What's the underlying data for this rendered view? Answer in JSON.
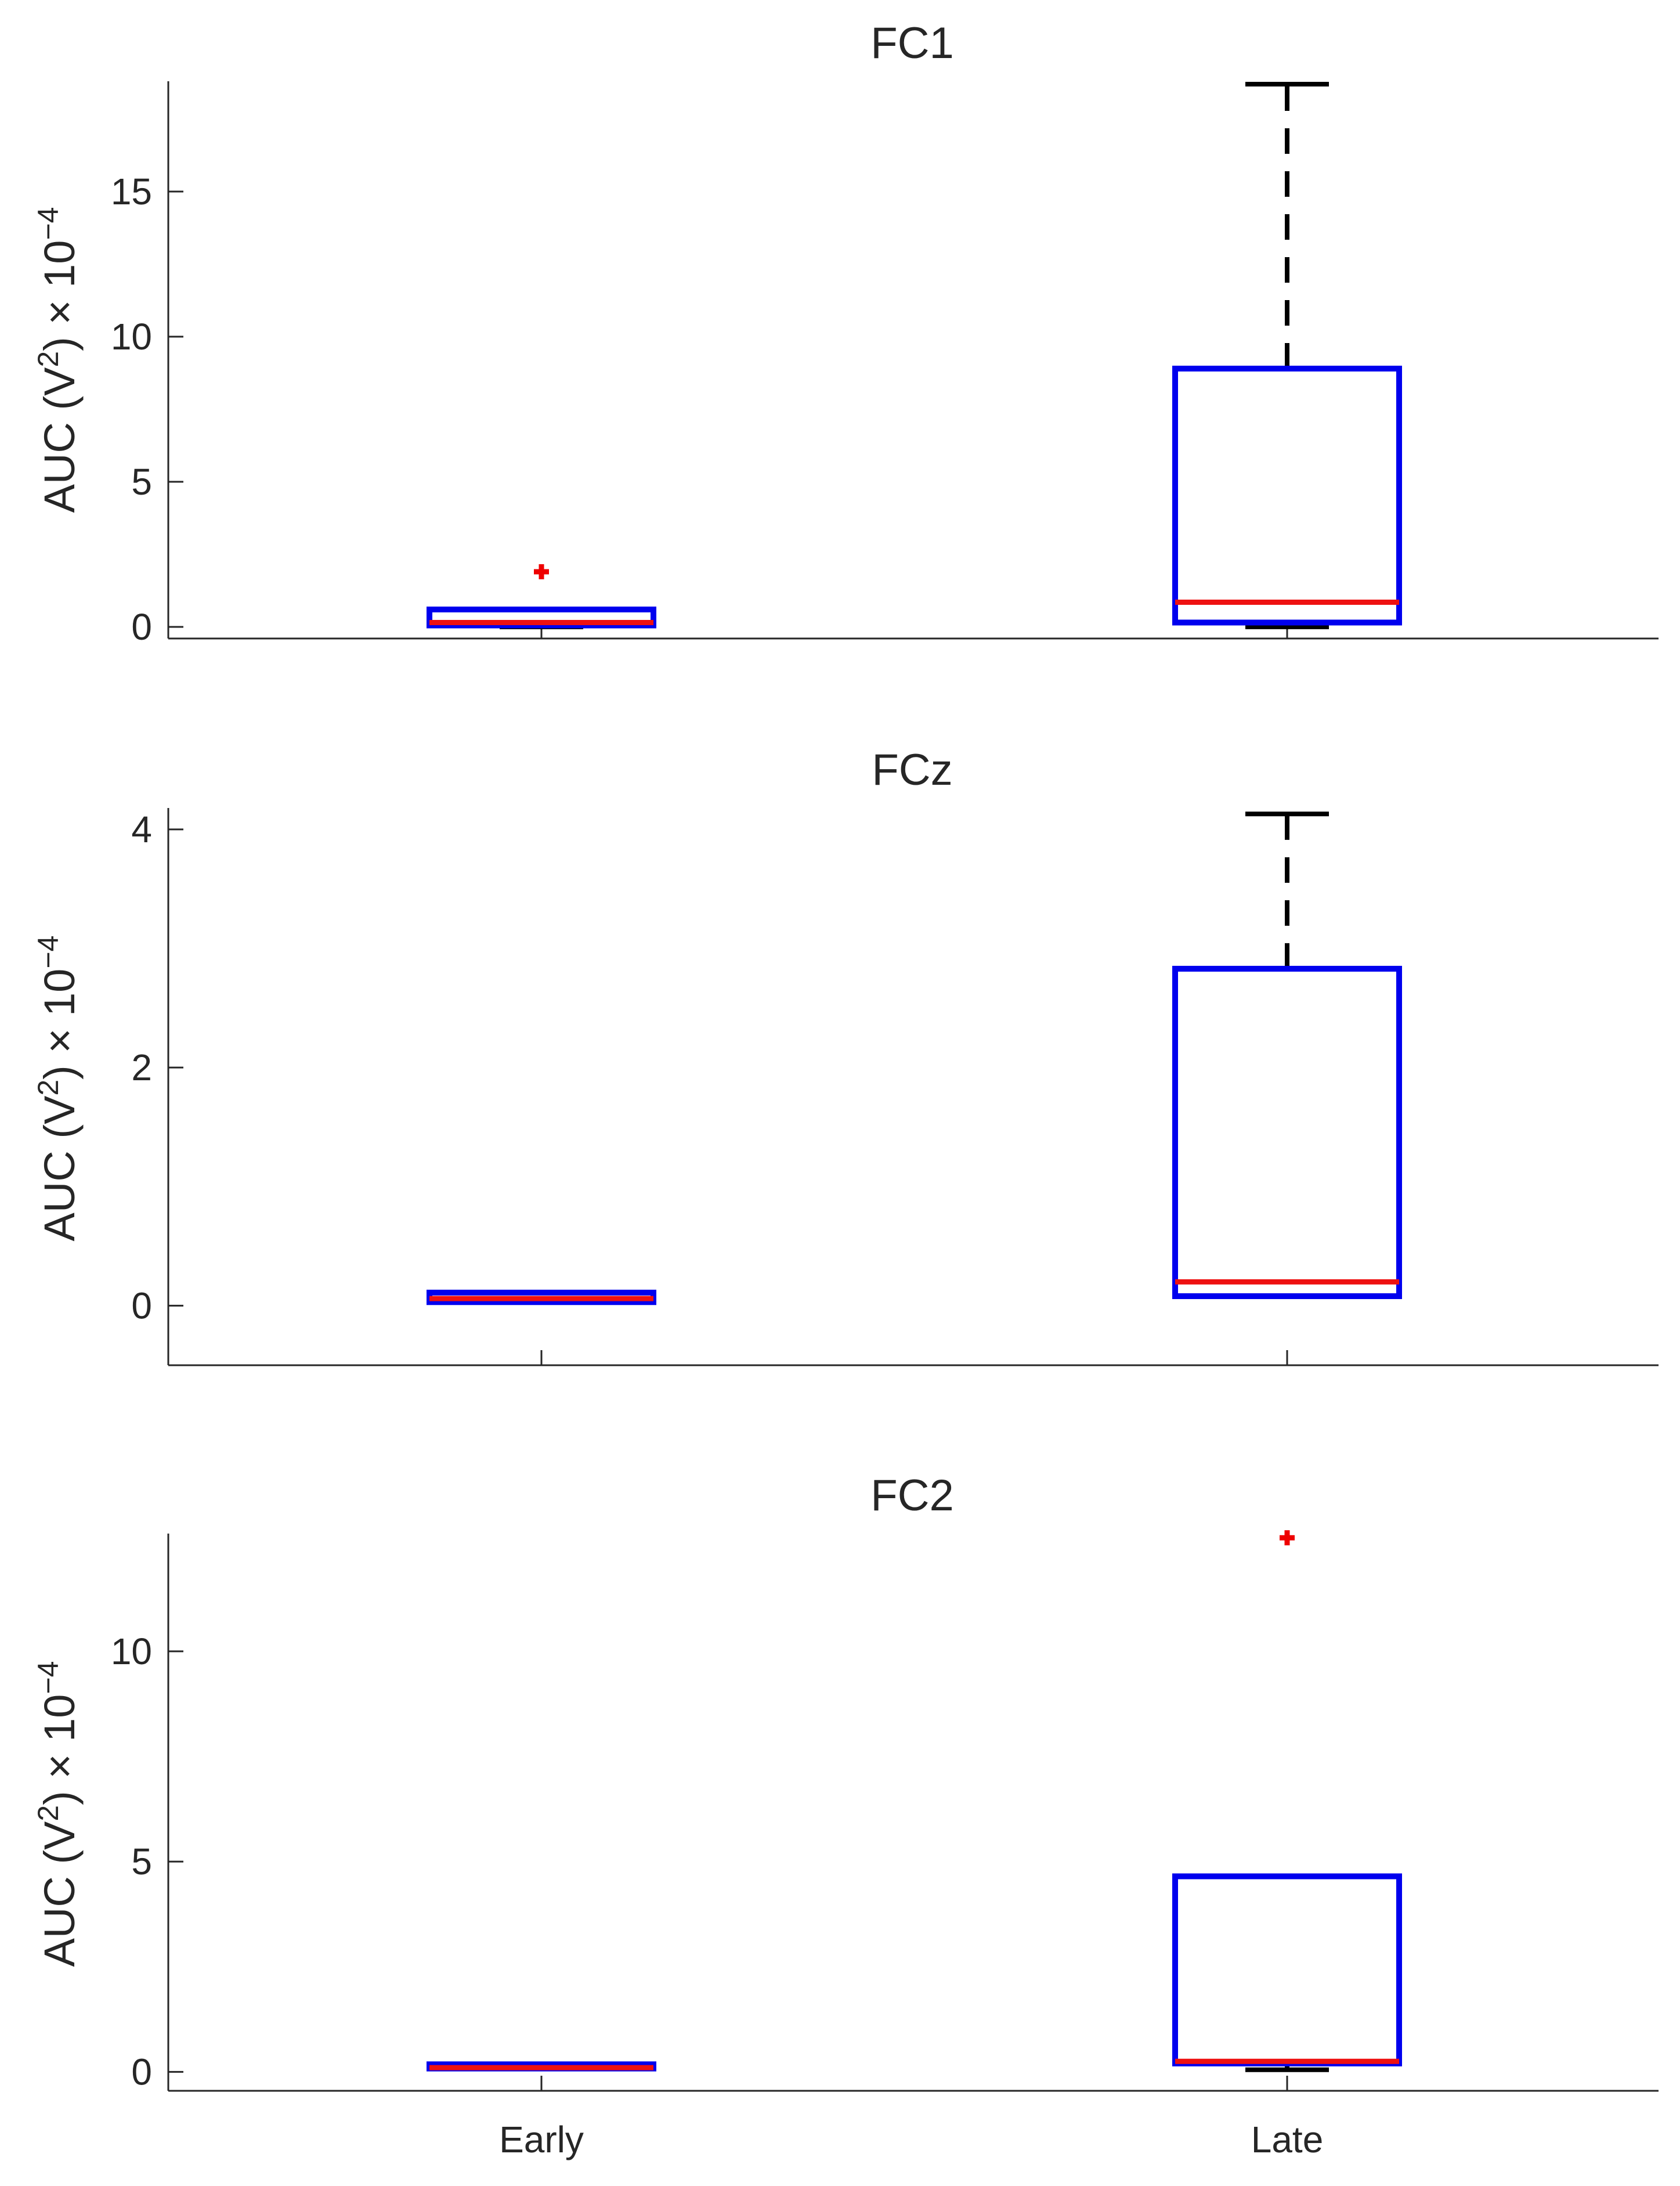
{
  "chart_data": [
    {
      "type": "box",
      "title": "FC1",
      "ylabel": {
        "text": "AUC (V",
        "sup": "2",
        "after": ") × 10",
        "exp": "−4"
      },
      "categories": [
        "Early",
        "Late"
      ],
      "ylim": [
        -0.4,
        18.8
      ],
      "yticks": [
        0,
        5,
        10,
        15
      ],
      "ytick_labels": [
        "0",
        "5",
        "10",
        "15"
      ],
      "show_xtick_labels": false,
      "boxes": [
        {
          "name": "Early",
          "whisker_low": 0.0,
          "q1": 0.05,
          "median": 0.15,
          "q3": 0.6,
          "whisker_high": 0.6,
          "outliers": [
            1.9
          ]
        },
        {
          "name": "Late",
          "whisker_low": 0.0,
          "q1": 0.15,
          "median": 0.85,
          "q3": 8.9,
          "whisker_high": 18.7,
          "outliers": []
        }
      ]
    },
    {
      "type": "box",
      "title": "FCz",
      "ylabel": {
        "text": "AUC (V",
        "sup": "2",
        "after": ") × 10",
        "exp": "−4"
      },
      "categories": [
        "Early",
        "Late"
      ],
      "ylim": [
        -0.5,
        4.18
      ],
      "yticks": [
        0,
        2,
        4
      ],
      "ytick_labels": [
        "0",
        "2",
        "4"
      ],
      "show_xtick_labels": false,
      "boxes": [
        {
          "name": "Early",
          "whisker_low": 0.03,
          "q1": 0.03,
          "median": 0.06,
          "q3": 0.11,
          "whisker_high": 0.11,
          "outliers": []
        },
        {
          "name": "Late",
          "whisker_low": 0.08,
          "q1": 0.08,
          "median": 0.2,
          "q3": 2.83,
          "whisker_high": 4.13,
          "outliers": []
        }
      ]
    },
    {
      "type": "box",
      "title": "FC2",
      "ylabel": {
        "text": "AUC (V",
        "sup": "2",
        "after": ") × 10",
        "exp": "−4"
      },
      "categories": [
        "Early",
        "Late"
      ],
      "ylim": [
        -0.45,
        12.8
      ],
      "yticks": [
        0,
        5,
        10
      ],
      "ytick_labels": [
        "0",
        "5",
        "10"
      ],
      "show_xtick_labels": true,
      "boxes": [
        {
          "name": "Early",
          "whisker_low": 0.08,
          "q1": 0.08,
          "median": 0.1,
          "q3": 0.18,
          "whisker_high": 0.18,
          "outliers": []
        },
        {
          "name": "Late",
          "whisker_low": 0.05,
          "q1": 0.2,
          "median": 0.25,
          "q3": 4.65,
          "whisker_high": 4.65,
          "outliers": [
            12.7
          ]
        }
      ]
    }
  ],
  "colors": {
    "box": "#0000ee",
    "median": "#ee1111",
    "whisker": "#000000",
    "outlier": "#ee0000",
    "axis": "#262626"
  }
}
